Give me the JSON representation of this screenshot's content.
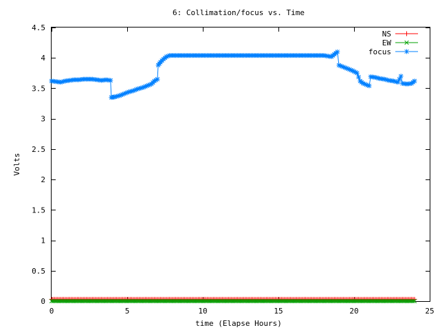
{
  "chart_data": {
    "type": "line",
    "title": "6: Collimation/focus vs. Time",
    "xlabel": "time (Elapse Hours)",
    "ylabel": "Volts",
    "xlim": [
      0,
      25
    ],
    "ylim": [
      0,
      4.5
    ],
    "xticks": [
      0,
      5,
      10,
      15,
      20,
      25
    ],
    "xtick_labels": [
      "0",
      "5",
      "10",
      "15",
      "20",
      "25"
    ],
    "yticks": [
      0,
      0.5,
      1,
      1.5,
      2,
      2.5,
      3,
      3.5,
      4,
      4.5
    ],
    "ytick_labels": [
      "0",
      "0.5",
      "1",
      "1.5",
      "2",
      "2.5",
      "3",
      "3.5",
      "4",
      "4.5"
    ],
    "grid": false,
    "legend_position": "top-right",
    "series": [
      {
        "name": "NS",
        "color": "#ff0000",
        "marker": "plus",
        "points": [
          [
            0,
            0.03
          ],
          [
            24,
            0.03
          ]
        ]
      },
      {
        "name": "EW",
        "color": "#00a000",
        "marker": "cross",
        "points": [
          [
            0,
            0.0
          ],
          [
            24,
            0.0
          ]
        ]
      },
      {
        "name": "focus",
        "color": "#0080ff",
        "marker": "star",
        "points": [
          [
            0.0,
            3.62
          ],
          [
            0.3,
            3.61
          ],
          [
            0.6,
            3.6
          ],
          [
            0.9,
            3.62
          ],
          [
            1.2,
            3.63
          ],
          [
            1.5,
            3.64
          ],
          [
            1.8,
            3.64
          ],
          [
            2.1,
            3.65
          ],
          [
            2.4,
            3.65
          ],
          [
            2.7,
            3.65
          ],
          [
            3.0,
            3.64
          ],
          [
            3.3,
            3.63
          ],
          [
            3.6,
            3.64
          ],
          [
            3.9,
            3.63
          ],
          [
            3.95,
            3.35
          ],
          [
            4.2,
            3.36
          ],
          [
            4.5,
            3.38
          ],
          [
            4.8,
            3.41
          ],
          [
            5.1,
            3.44
          ],
          [
            5.4,
            3.46
          ],
          [
            5.7,
            3.49
          ],
          [
            6.0,
            3.51
          ],
          [
            6.3,
            3.54
          ],
          [
            6.6,
            3.57
          ],
          [
            6.8,
            3.62
          ],
          [
            7.0,
            3.65
          ],
          [
            7.05,
            3.88
          ],
          [
            7.2,
            3.93
          ],
          [
            7.4,
            3.98
          ],
          [
            7.6,
            4.02
          ],
          [
            7.8,
            4.04
          ],
          [
            8.5,
            4.04
          ],
          [
            9.0,
            4.04
          ],
          [
            10.0,
            4.04
          ],
          [
            11.0,
            4.04
          ],
          [
            12.0,
            4.04
          ],
          [
            13.0,
            4.04
          ],
          [
            14.0,
            4.04
          ],
          [
            15.0,
            4.04
          ],
          [
            16.0,
            4.04
          ],
          [
            17.0,
            4.04
          ],
          [
            18.0,
            4.04
          ],
          [
            18.5,
            4.02
          ],
          [
            18.9,
            4.1
          ],
          [
            19.0,
            3.88
          ],
          [
            19.3,
            3.85
          ],
          [
            19.6,
            3.82
          ],
          [
            19.9,
            3.79
          ],
          [
            20.2,
            3.75
          ],
          [
            20.4,
            3.62
          ],
          [
            20.6,
            3.58
          ],
          [
            20.9,
            3.55
          ],
          [
            21.0,
            3.54
          ],
          [
            21.1,
            3.69
          ],
          [
            21.4,
            3.68
          ],
          [
            21.7,
            3.66
          ],
          [
            22.0,
            3.65
          ],
          [
            22.3,
            3.63
          ],
          [
            22.6,
            3.62
          ],
          [
            22.9,
            3.6
          ],
          [
            23.1,
            3.7
          ],
          [
            23.2,
            3.58
          ],
          [
            23.5,
            3.57
          ],
          [
            23.8,
            3.58
          ],
          [
            24.0,
            3.62
          ]
        ]
      }
    ]
  }
}
